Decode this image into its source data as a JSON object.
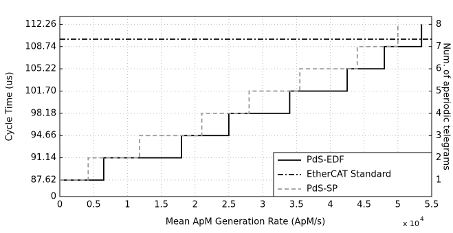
{
  "chart_data": {
    "type": "step",
    "ylabel": "Cycle Time (us)",
    "y2label": "Num. of aperiodic telegrams",
    "xlabel": "Mean ApM Generation Rate (ApM/s)",
    "x_offset_text": "x 10",
    "x_offset_exp": "4",
    "xlim": [
      0,
      5.5
    ],
    "xticks": [
      0,
      0.5,
      1,
      1.5,
      2,
      2.5,
      3,
      3.5,
      4,
      4.5,
      5,
      5.5
    ],
    "ylim": [
      85.0,
      113.5
    ],
    "axis_break": true,
    "yticks": [
      0,
      87.62,
      91.14,
      94.66,
      98.18,
      {
        "value": 101.7,
        "label": "101.70"
      },
      105.22,
      108.74,
      112.26
    ],
    "y2lim": [
      0.26,
      8.35
    ],
    "y2ticks": [
      1,
      2,
      3,
      4,
      5,
      6,
      7,
      8
    ],
    "grid": true,
    "legend": "lower right",
    "series": [
      {
        "name": "PdS-EDF",
        "color": "#000000",
        "dash": "solid",
        "axis": "y2",
        "x": [
          0,
          0.65,
          1.8,
          2.5,
          3.4,
          4.25,
          4.8,
          5.35
        ],
        "values": [
          1,
          2,
          3,
          4,
          5,
          6,
          7,
          8
        ]
      },
      {
        "name": "EtherCAT Standard",
        "color": "#000000",
        "dash": "dashdot",
        "axis": "y2",
        "x": [
          0,
          5.5
        ],
        "values": [
          7.33,
          7.33
        ]
      },
      {
        "name": "PdS-SP",
        "color": "#999999",
        "dash": "dashed",
        "axis": "y2",
        "x": [
          0,
          0.42,
          1.18,
          2.1,
          2.8,
          3.55,
          4.4,
          5.0
        ],
        "values": [
          1,
          2,
          3,
          4,
          5,
          6,
          7,
          8
        ]
      }
    ]
  }
}
